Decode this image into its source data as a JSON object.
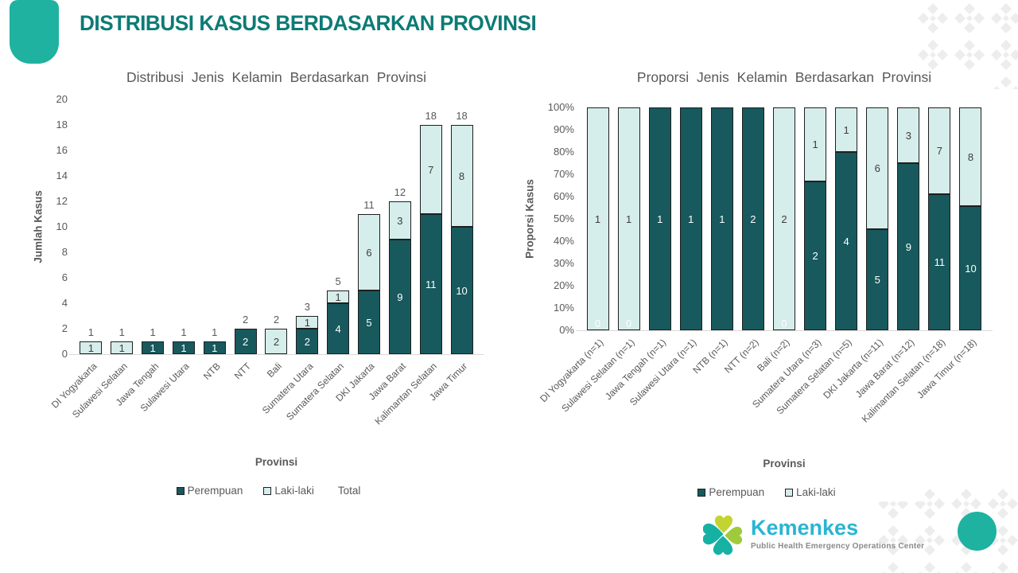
{
  "slide": {
    "title": "DISTRIBUSI KASUS BERDASARKAN PROVINSI"
  },
  "colors": {
    "accent": "#1fb2a0",
    "title": "#0d7b75",
    "perempuan": "#17595d",
    "laki_laki": "#d5edeb",
    "bar_border": "#1f1f1f",
    "axis_text": "#595959",
    "baseline": "#d9d9d9",
    "kemenkes_cyan": "#2ab5d2",
    "logo_teal": "#17b1a3",
    "logo_lime": "#c1d430",
    "logo_green": "#9fcb3b",
    "pattern_gray": "#ededed",
    "subtitle_gray": "#8a8a8a"
  },
  "chart_data": [
    {
      "type": "bar",
      "stacked": true,
      "title": "Distribusi Jenis Kelamin Berdasarkan Provinsi",
      "xlabel": "Provinsi",
      "ylabel": "Jumlah Kasus",
      "ylim": [
        0,
        20
      ],
      "yticks": [
        "0",
        "2",
        "4",
        "6",
        "8",
        "10",
        "12",
        "14",
        "16",
        "18",
        "20"
      ],
      "grid": false,
      "legend_position": "bottom",
      "categories": [
        "DI Yogyakarta",
        "Sulawesi Selatan",
        "Jawa Tengah",
        "Sulawesi Utara",
        "NTB",
        "NTT",
        "Bali",
        "Sumatera Utara",
        "Sumatera Selatan",
        "DKI Jakarta",
        "Jawa Barat",
        "Kalimantan Selatan",
        "Jawa Timur"
      ],
      "series": [
        {
          "name": "Perempuan",
          "values": [
            0,
            0,
            1,
            1,
            1,
            2,
            0,
            2,
            4,
            5,
            9,
            11,
            10
          ]
        },
        {
          "name": "Laki-laki",
          "values": [
            1,
            1,
            0,
            0,
            0,
            0,
            2,
            1,
            1,
            6,
            3,
            7,
            8
          ]
        },
        {
          "name": "Total",
          "values": [
            1,
            1,
            1,
            1,
            1,
            2,
            2,
            3,
            5,
            11,
            12,
            18,
            18
          ],
          "label_only": true
        }
      ],
      "legend": [
        "Perempuan",
        "Laki-laki",
        "Total"
      ]
    },
    {
      "type": "bar",
      "stacked": "percent",
      "title": "Proporsi Jenis Kelamin Berdasarkan Provinsi",
      "xlabel": "Provinsi",
      "ylabel": "Proporsi Kasus",
      "ylim": [
        0,
        100
      ],
      "yticks": [
        "0%",
        "10%",
        "20%",
        "30%",
        "40%",
        "50%",
        "60%",
        "70%",
        "80%",
        "90%",
        "100%"
      ],
      "grid": false,
      "legend_position": "bottom",
      "categories": [
        "DI Yogyakarta (n=1)",
        "Sulawesi Selatan (n=1)",
        "Jawa Tengah (n=1)",
        "Sulawesi Utara (n=1)",
        "NTB (n=1)",
        "NTT (n=2)",
        "Bali (n=2)",
        "Sumatera Utara (n=3)",
        "Sumatera Selatan (n=5)",
        "DKI Jakarta (n=11)",
        "Jawa Barat (n=12)",
        "Kalimantan Selatan (n=18)",
        "Jawa Timur (n=18)"
      ],
      "series": [
        {
          "name": "Perempuan",
          "values": [
            0,
            0,
            1,
            1,
            1,
            2,
            0,
            2,
            4,
            5,
            9,
            11,
            10
          ]
        },
        {
          "name": "Laki-laki",
          "values": [
            1,
            1,
            0,
            0,
            0,
            0,
            2,
            1,
            1,
            6,
            3,
            7,
            8
          ]
        }
      ],
      "legend": [
        "Perempuan",
        "Laki-laki"
      ]
    }
  ],
  "logo": {
    "icon": "kemenkes-clover-icon",
    "brand": "Kemenkes",
    "subtitle": "Public Health Emergency Operations Center"
  }
}
